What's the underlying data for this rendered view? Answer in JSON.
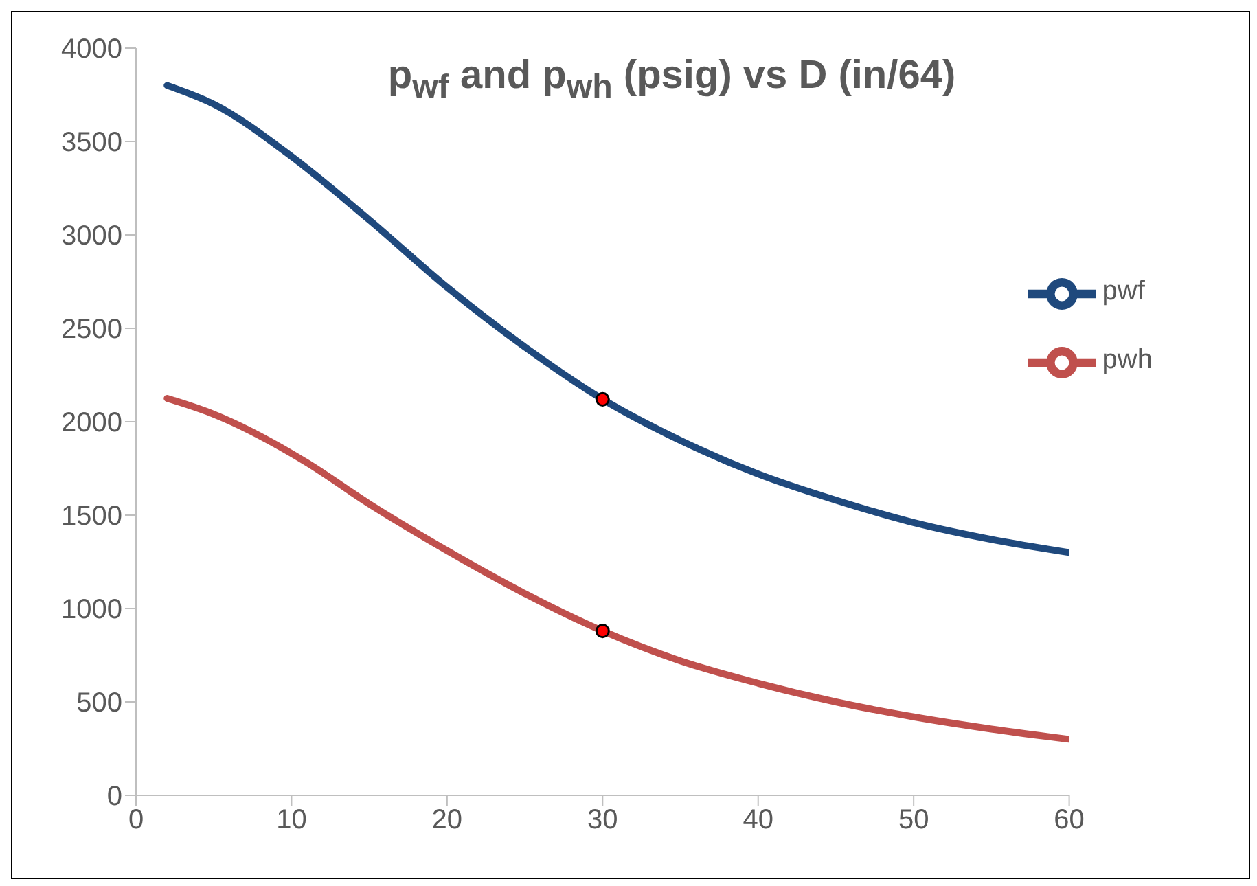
{
  "chart_data": {
    "type": "line",
    "title": "p$_{wf}$ and p$_{wh}$ (psig) vs D (in/64)",
    "xlim": [
      0,
      60
    ],
    "xticks": [
      0,
      10,
      20,
      30,
      40,
      50,
      60
    ],
    "ylim": [
      0,
      4000
    ],
    "yticks": [
      0,
      500,
      1000,
      1500,
      2000,
      2500,
      3000,
      3500,
      4000
    ],
    "grid": false,
    "legend": "right",
    "line_style": "solid",
    "series": [
      {
        "name": "pwf",
        "color": "#1f497d",
        "marker": "none",
        "x": [
          2,
          5,
          10,
          15,
          20,
          25,
          30,
          35,
          40,
          45,
          50,
          55,
          60
        ],
        "values": [
          3800,
          3700,
          3420,
          3080,
          2720,
          2400,
          2120,
          1900,
          1720,
          1580,
          1460,
          1370,
          1300
        ]
      },
      {
        "name": "pwh",
        "color": "#c0504d",
        "marker": "none",
        "x": [
          2,
          5,
          10,
          11,
          15,
          20,
          25,
          30,
          35,
          40,
          45,
          50,
          55,
          60
        ],
        "values": [
          2125,
          2040,
          1830,
          1780,
          1560,
          1310,
          1080,
          880,
          720,
          600,
          500,
          420,
          355,
          300
        ]
      },
      {
        "type": "scatter",
        "color": "#ff0000",
        "marker": "circle",
        "x": [
          30,
          30
        ],
        "values": [
          2120,
          880
        ]
      }
    ]
  }
}
